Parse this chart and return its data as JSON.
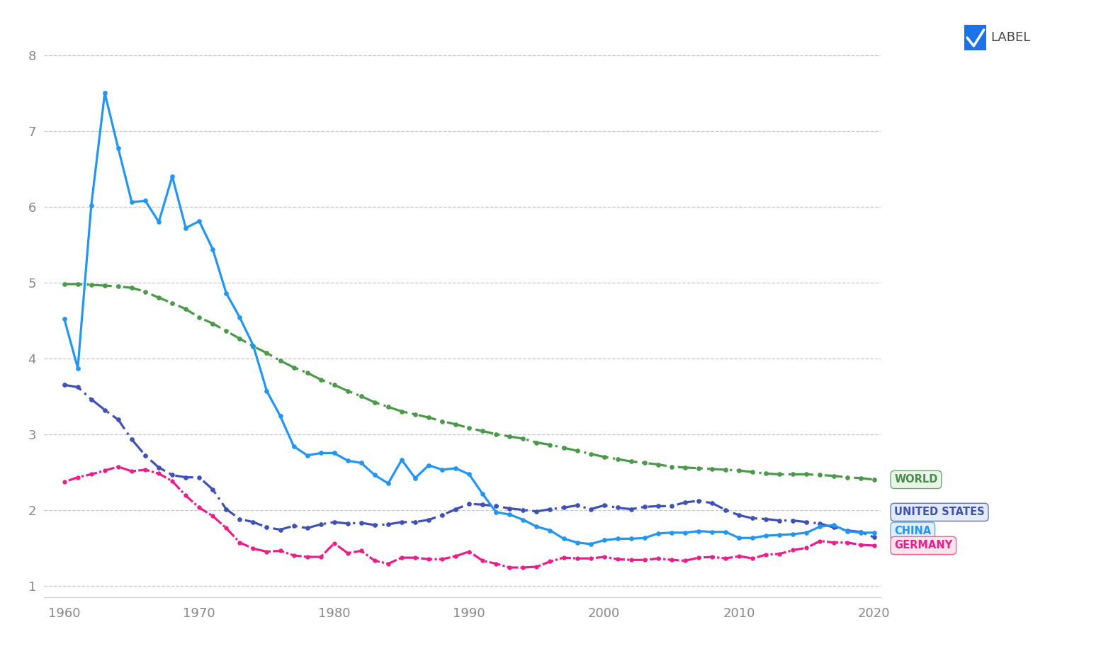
{
  "years": [
    1960,
    1961,
    1962,
    1963,
    1964,
    1965,
    1966,
    1967,
    1968,
    1969,
    1970,
    1971,
    1972,
    1973,
    1974,
    1975,
    1976,
    1977,
    1978,
    1979,
    1980,
    1981,
    1982,
    1983,
    1984,
    1985,
    1986,
    1987,
    1988,
    1989,
    1990,
    1991,
    1992,
    1993,
    1994,
    1995,
    1996,
    1997,
    1998,
    1999,
    2000,
    2001,
    2002,
    2003,
    2004,
    2005,
    2006,
    2007,
    2008,
    2009,
    2010,
    2011,
    2012,
    2013,
    2014,
    2015,
    2016,
    2017,
    2018,
    2019,
    2020
  ],
  "china": [
    4.52,
    3.87,
    6.02,
    7.5,
    6.77,
    6.06,
    6.08,
    5.8,
    6.4,
    5.72,
    5.81,
    5.44,
    4.86,
    4.54,
    4.17,
    3.57,
    3.24,
    2.84,
    2.72,
    2.75,
    2.75,
    2.65,
    2.62,
    2.46,
    2.35,
    2.66,
    2.42,
    2.59,
    2.53,
    2.55,
    2.47,
    2.21,
    1.97,
    1.94,
    1.87,
    1.78,
    1.73,
    1.62,
    1.57,
    1.55,
    1.6,
    1.62,
    1.62,
    1.63,
    1.69,
    1.7,
    1.7,
    1.72,
    1.71,
    1.71,
    1.63,
    1.63,
    1.66,
    1.67,
    1.68,
    1.7,
    1.78,
    1.8,
    1.72,
    1.7,
    1.7
  ],
  "world": [
    4.98,
    4.98,
    4.97,
    4.96,
    4.95,
    4.93,
    4.88,
    4.8,
    4.73,
    4.65,
    4.54,
    4.46,
    4.36,
    4.26,
    4.16,
    4.07,
    3.97,
    3.88,
    3.81,
    3.72,
    3.65,
    3.57,
    3.5,
    3.42,
    3.36,
    3.3,
    3.26,
    3.22,
    3.17,
    3.13,
    3.08,
    3.04,
    3.0,
    2.97,
    2.94,
    2.89,
    2.86,
    2.82,
    2.78,
    2.74,
    2.7,
    2.67,
    2.64,
    2.62,
    2.6,
    2.57,
    2.56,
    2.55,
    2.54,
    2.53,
    2.52,
    2.5,
    2.48,
    2.47,
    2.47,
    2.47,
    2.46,
    2.45,
    2.43,
    2.42,
    2.4
  ],
  "usa": [
    3.65,
    3.62,
    3.46,
    3.32,
    3.19,
    2.93,
    2.72,
    2.56,
    2.46,
    2.43,
    2.43,
    2.27,
    2.01,
    1.88,
    1.84,
    1.77,
    1.74,
    1.79,
    1.76,
    1.81,
    1.84,
    1.82,
    1.83,
    1.8,
    1.81,
    1.84,
    1.84,
    1.87,
    1.93,
    2.01,
    2.08,
    2.07,
    2.05,
    2.02,
    2.0,
    1.98,
    2.01,
    2.03,
    2.06,
    2.01,
    2.06,
    2.03,
    2.01,
    2.04,
    2.05,
    2.05,
    2.1,
    2.12,
    2.09,
    2.0,
    1.93,
    1.89,
    1.88,
    1.86,
    1.86,
    1.84,
    1.82,
    1.77,
    1.73,
    1.71,
    1.64
  ],
  "germany": [
    2.37,
    2.43,
    2.47,
    2.52,
    2.57,
    2.51,
    2.53,
    2.48,
    2.38,
    2.19,
    2.03,
    1.92,
    1.76,
    1.57,
    1.49,
    1.45,
    1.46,
    1.4,
    1.38,
    1.38,
    1.56,
    1.43,
    1.46,
    1.33,
    1.29,
    1.37,
    1.37,
    1.35,
    1.35,
    1.39,
    1.45,
    1.33,
    1.29,
    1.24,
    1.24,
    1.25,
    1.32,
    1.37,
    1.36,
    1.36,
    1.38,
    1.35,
    1.34,
    1.34,
    1.36,
    1.34,
    1.33,
    1.37,
    1.38,
    1.36,
    1.39,
    1.36,
    1.41,
    1.42,
    1.47,
    1.5,
    1.59,
    1.57,
    1.57,
    1.54,
    1.53
  ],
  "china_color": "#2196f3",
  "world_color": "#4a9a4a",
  "usa_color": "#3f51b5",
  "germany_color": "#e91e8c",
  "background_color": "#ffffff",
  "grid_color": "#c8c8c8",
  "ylim": [
    0.85,
    8.3
  ],
  "yticks": [
    1,
    2,
    3,
    4,
    5,
    6,
    7,
    8
  ],
  "xticks": [
    1960,
    1970,
    1980,
    1990,
    2000,
    2010,
    2020
  ],
  "label_checkbox_color": "#1a73e8",
  "label_text": "LABEL",
  "labels": {
    "WORLD": {
      "bg": "#e8f5e9",
      "edge": "#6aaa6a",
      "text": "#4a8a4a",
      "y": 2.4
    },
    "UNITED STATES": {
      "bg": "#e3eaf8",
      "edge": "#6070c0",
      "text": "#3f51b5",
      "y": 1.97
    },
    "CHINA": {
      "bg": "#e3eef8",
      "edge": "#5aaae8",
      "text": "#2196f3",
      "y": 1.72
    },
    "GERMANY": {
      "bg": "#fce4ec",
      "edge": "#f06090",
      "text": "#e91e8c",
      "y": 1.53
    }
  }
}
